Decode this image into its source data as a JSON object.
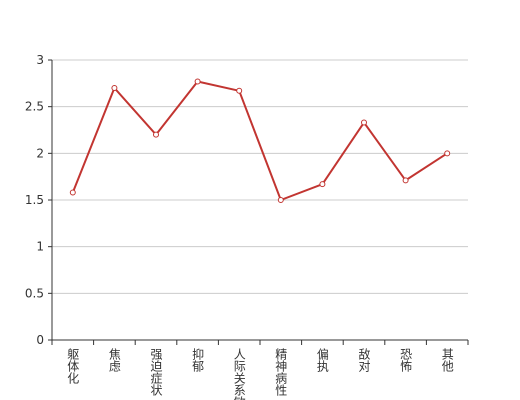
{
  "chart_data": {
    "type": "line",
    "categories": [
      "躯体化",
      "焦虑",
      "强迫症状",
      "抑郁",
      "人际关系敏感",
      "精神病性",
      "偏执",
      "敌对",
      "恐怖",
      "其他"
    ],
    "values": [
      1.58,
      2.7,
      2.2,
      2.77,
      2.67,
      1.5,
      1.67,
      2.33,
      1.71,
      2.0
    ],
    "color": "#c23531",
    "ylim": [
      0,
      3
    ],
    "yticks": [
      0,
      0.5,
      1,
      1.5,
      2,
      2.5,
      3
    ],
    "grid": true
  }
}
